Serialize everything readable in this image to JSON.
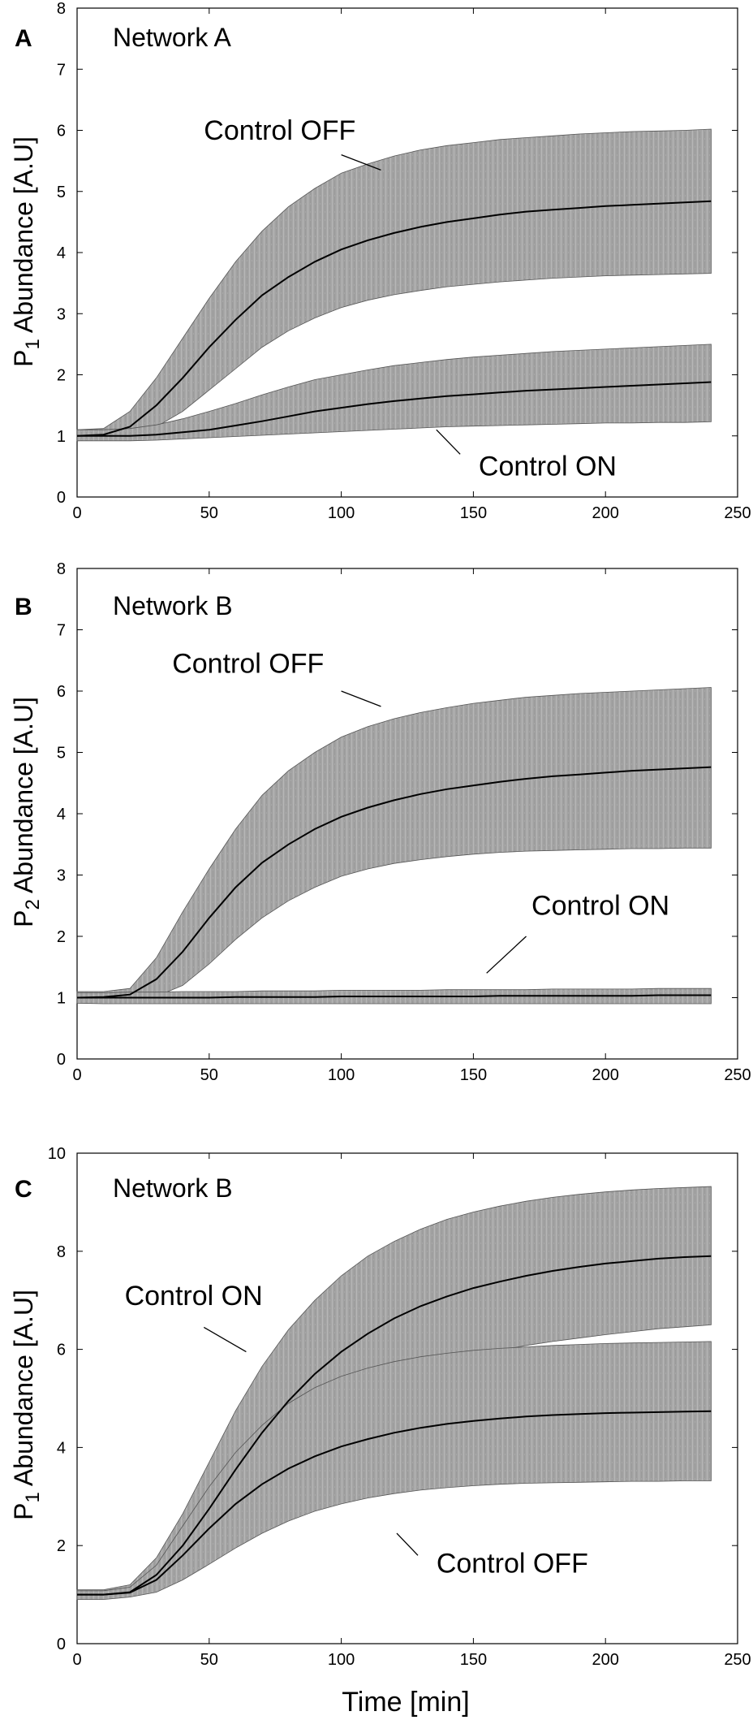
{
  "figure": {
    "xlabel": "Time [min]"
  },
  "chart_data": [
    {
      "type": "line",
      "panel": "A",
      "title": "Network A",
      "ylabel": "P1 Abundance [A.U]",
      "ylabel_main": "P",
      "ylabel_sub": "1",
      "ylabel_rest": " Abundance [A.U]",
      "xlim": [
        0,
        250
      ],
      "ylim": [
        0,
        8
      ],
      "xticks": [
        0,
        50,
        100,
        150,
        200,
        250
      ],
      "yticks": [
        0,
        1,
        2,
        3,
        4,
        5,
        6,
        7,
        8
      ],
      "x": [
        0,
        10,
        20,
        30,
        40,
        50,
        60,
        70,
        80,
        90,
        100,
        110,
        120,
        130,
        140,
        150,
        160,
        170,
        180,
        190,
        200,
        210,
        220,
        230,
        240
      ],
      "series": [
        {
          "name": "Control OFF",
          "values": [
            1.0,
            1.02,
            1.15,
            1.5,
            1.95,
            2.45,
            2.9,
            3.3,
            3.6,
            3.85,
            4.05,
            4.2,
            4.32,
            4.42,
            4.5,
            4.56,
            4.62,
            4.67,
            4.7,
            4.73,
            4.76,
            4.78,
            4.8,
            4.82,
            4.84
          ],
          "upper": [
            1.1,
            1.12,
            1.4,
            1.95,
            2.6,
            3.25,
            3.85,
            4.35,
            4.75,
            5.05,
            5.3,
            5.45,
            5.58,
            5.68,
            5.75,
            5.8,
            5.85,
            5.88,
            5.91,
            5.94,
            5.96,
            5.98,
            5.99,
            6.0,
            6.02
          ],
          "lower": [
            0.92,
            0.95,
            1.0,
            1.15,
            1.4,
            1.75,
            2.1,
            2.45,
            2.72,
            2.93,
            3.1,
            3.22,
            3.31,
            3.38,
            3.44,
            3.48,
            3.52,
            3.55,
            3.58,
            3.6,
            3.62,
            3.63,
            3.64,
            3.65,
            3.66
          ]
        },
        {
          "name": "Control ON",
          "values": [
            1.0,
            1.0,
            1.0,
            1.02,
            1.06,
            1.1,
            1.17,
            1.24,
            1.32,
            1.4,
            1.46,
            1.52,
            1.57,
            1.61,
            1.65,
            1.68,
            1.71,
            1.74,
            1.76,
            1.78,
            1.8,
            1.82,
            1.84,
            1.86,
            1.88
          ],
          "upper": [
            1.1,
            1.1,
            1.12,
            1.18,
            1.28,
            1.4,
            1.53,
            1.67,
            1.8,
            1.92,
            2.0,
            2.08,
            2.15,
            2.2,
            2.25,
            2.29,
            2.32,
            2.35,
            2.38,
            2.4,
            2.42,
            2.44,
            2.46,
            2.48,
            2.5
          ],
          "lower": [
            0.92,
            0.92,
            0.92,
            0.93,
            0.95,
            0.97,
            0.99,
            1.01,
            1.03,
            1.05,
            1.07,
            1.09,
            1.11,
            1.13,
            1.15,
            1.16,
            1.17,
            1.18,
            1.19,
            1.2,
            1.21,
            1.21,
            1.22,
            1.22,
            1.23
          ]
        }
      ],
      "annotations": [
        {
          "text": "Control OFF",
          "x": 48,
          "y": 5.85,
          "from": [
            100,
            5.6
          ],
          "to": [
            115,
            5.35
          ]
        },
        {
          "text": "Control ON",
          "x": 152,
          "y": 0.35,
          "from": [
            136,
            1.1
          ],
          "to": [
            145,
            0.7
          ]
        }
      ]
    },
    {
      "type": "line",
      "panel": "B",
      "title": "Network B",
      "ylabel": "P2 Abundance [A.U]",
      "ylabel_main": "P",
      "ylabel_sub": "2",
      "ylabel_rest": " Abundance [A.U]",
      "xlim": [
        0,
        250
      ],
      "ylim": [
        0,
        8
      ],
      "xticks": [
        0,
        50,
        100,
        150,
        200,
        250
      ],
      "yticks": [
        0,
        1,
        2,
        3,
        4,
        5,
        6,
        7,
        8
      ],
      "x": [
        0,
        10,
        20,
        30,
        40,
        50,
        60,
        70,
        80,
        90,
        100,
        110,
        120,
        130,
        140,
        150,
        160,
        170,
        180,
        190,
        200,
        210,
        220,
        230,
        240
      ],
      "series": [
        {
          "name": "Control OFF",
          "values": [
            1.0,
            1.01,
            1.05,
            1.3,
            1.75,
            2.3,
            2.8,
            3.2,
            3.5,
            3.75,
            3.95,
            4.1,
            4.22,
            4.32,
            4.4,
            4.46,
            4.52,
            4.57,
            4.61,
            4.64,
            4.67,
            4.7,
            4.72,
            4.74,
            4.76
          ],
          "upper": [
            1.1,
            1.1,
            1.15,
            1.65,
            2.4,
            3.1,
            3.75,
            4.3,
            4.7,
            5.0,
            5.25,
            5.42,
            5.55,
            5.65,
            5.73,
            5.8,
            5.85,
            5.9,
            5.93,
            5.96,
            5.98,
            6.0,
            6.02,
            6.04,
            6.06
          ],
          "lower": [
            0.92,
            0.92,
            0.95,
            1.02,
            1.2,
            1.55,
            1.95,
            2.3,
            2.58,
            2.8,
            2.98,
            3.1,
            3.19,
            3.25,
            3.3,
            3.34,
            3.37,
            3.39,
            3.4,
            3.41,
            3.42,
            3.43,
            3.43,
            3.44,
            3.44
          ]
        },
        {
          "name": "Control ON",
          "values": [
            1.0,
            1.0,
            1.0,
            1.0,
            1.0,
            1.0,
            1.01,
            1.01,
            1.01,
            1.01,
            1.02,
            1.02,
            1.02,
            1.02,
            1.02,
            1.02,
            1.03,
            1.03,
            1.03,
            1.03,
            1.03,
            1.03,
            1.04,
            1.04,
            1.04
          ],
          "upper": [
            1.08,
            1.08,
            1.09,
            1.09,
            1.1,
            1.1,
            1.1,
            1.11,
            1.11,
            1.11,
            1.12,
            1.12,
            1.12,
            1.12,
            1.13,
            1.13,
            1.13,
            1.13,
            1.14,
            1.14,
            1.14,
            1.14,
            1.15,
            1.15,
            1.15
          ],
          "lower": [
            0.91,
            0.9,
            0.9,
            0.9,
            0.9,
            0.9,
            0.9,
            0.9,
            0.9,
            0.9,
            0.9,
            0.9,
            0.9,
            0.9,
            0.9,
            0.9,
            0.9,
            0.9,
            0.9,
            0.9,
            0.9,
            0.9,
            0.9,
            0.9,
            0.9
          ]
        }
      ],
      "annotations": [
        {
          "text": "Control OFF",
          "x": 36,
          "y": 6.3,
          "from": [
            100,
            6.0
          ],
          "to": [
            115,
            5.75
          ]
        },
        {
          "text": "Control ON",
          "x": 172,
          "y": 2.35,
          "from": [
            170,
            2.0
          ],
          "to": [
            155,
            1.4
          ]
        }
      ]
    },
    {
      "type": "line",
      "panel": "C",
      "title": "Network B",
      "ylabel": "P1 Abundance [A.U]",
      "ylabel_main": "P",
      "ylabel_sub": "1",
      "ylabel_rest": " Abundance [A.U]",
      "xlim": [
        0,
        250
      ],
      "ylim": [
        0,
        10
      ],
      "xticks": [
        0,
        50,
        100,
        150,
        200,
        250
      ],
      "yticks": [
        0,
        2,
        4,
        6,
        8,
        10
      ],
      "x": [
        0,
        10,
        20,
        30,
        40,
        50,
        60,
        70,
        80,
        90,
        100,
        110,
        120,
        130,
        140,
        150,
        160,
        170,
        180,
        190,
        200,
        210,
        220,
        230,
        240
      ],
      "series": [
        {
          "name": "Control ON",
          "values": [
            1.0,
            1.0,
            1.05,
            1.4,
            2.0,
            2.75,
            3.55,
            4.3,
            4.95,
            5.5,
            5.95,
            6.32,
            6.63,
            6.88,
            7.08,
            7.25,
            7.38,
            7.5,
            7.6,
            7.68,
            7.75,
            7.8,
            7.85,
            7.88,
            7.9
          ],
          "upper": [
            1.1,
            1.1,
            1.2,
            1.75,
            2.65,
            3.7,
            4.75,
            5.65,
            6.4,
            7.0,
            7.5,
            7.9,
            8.2,
            8.45,
            8.65,
            8.8,
            8.92,
            9.02,
            9.1,
            9.16,
            9.21,
            9.25,
            9.28,
            9.3,
            9.32
          ],
          "lower": [
            0.92,
            0.92,
            0.98,
            1.2,
            1.65,
            2.2,
            2.85,
            3.45,
            3.95,
            4.4,
            4.8,
            5.1,
            5.35,
            5.55,
            5.72,
            5.86,
            5.98,
            6.08,
            6.16,
            6.23,
            6.3,
            6.36,
            6.42,
            6.46,
            6.5
          ]
        },
        {
          "name": "Control OFF",
          "values": [
            1.0,
            1.0,
            1.04,
            1.3,
            1.8,
            2.35,
            2.85,
            3.25,
            3.57,
            3.82,
            4.02,
            4.17,
            4.3,
            4.4,
            4.48,
            4.54,
            4.59,
            4.63,
            4.66,
            4.68,
            4.7,
            4.71,
            4.72,
            4.73,
            4.74
          ],
          "upper": [
            1.08,
            1.08,
            1.15,
            1.6,
            2.4,
            3.2,
            3.9,
            4.45,
            4.9,
            5.22,
            5.45,
            5.62,
            5.75,
            5.85,
            5.92,
            5.98,
            6.02,
            6.05,
            6.08,
            6.1,
            6.12,
            6.13,
            6.14,
            6.15,
            6.16
          ],
          "lower": [
            0.9,
            0.9,
            0.95,
            1.05,
            1.3,
            1.62,
            1.95,
            2.25,
            2.5,
            2.7,
            2.85,
            2.97,
            3.06,
            3.13,
            3.18,
            3.22,
            3.25,
            3.27,
            3.28,
            3.29,
            3.3,
            3.31,
            3.31,
            3.32,
            3.32
          ]
        }
      ],
      "annotations": [
        {
          "text": "Control ON",
          "x": 18,
          "y": 6.9,
          "from": [
            48,
            6.45
          ],
          "to": [
            64,
            5.95
          ]
        },
        {
          "text": "Control OFF",
          "x": 136,
          "y": 1.45,
          "from": [
            121,
            2.25
          ],
          "to": [
            129,
            1.8
          ]
        }
      ]
    }
  ]
}
